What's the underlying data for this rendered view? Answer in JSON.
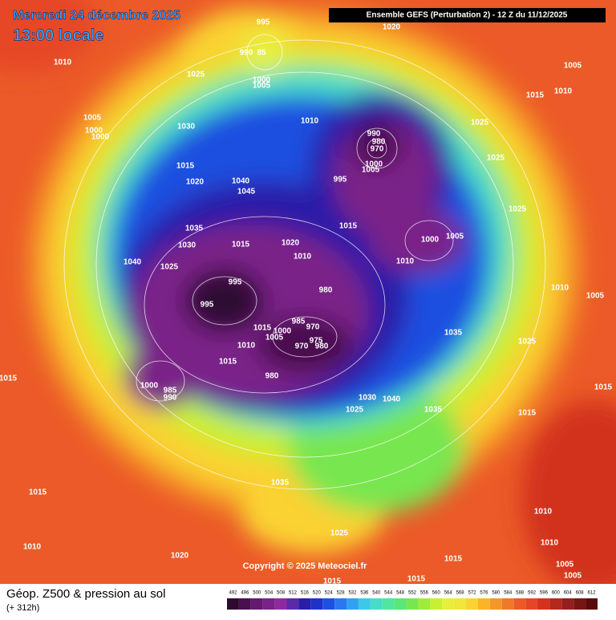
{
  "header": {
    "date": "Mercredi 24 décembre 2025",
    "time": "13:00 locale",
    "model": "Ensemble GEFS  (Perturbation 2)  -  12 Z du 11/12/2025"
  },
  "map": {
    "copyright": "Copyright © 2025 Meteociel.fr",
    "pressure_labels": [
      "995",
      "990",
      "85",
      "1020",
      "1010",
      "1005",
      "1025",
      "1000",
      "1005",
      "1015",
      "1010",
      "1005",
      "1000",
      "1000",
      "1030",
      "1010",
      "1025",
      "990",
      "980",
      "970",
      "1025",
      "1005",
      "1000",
      "1015",
      "995",
      "1040",
      "1020",
      "1045",
      "1025",
      "1015",
      "1035",
      "1005",
      "1000",
      "1030",
      "1015",
      "1020",
      "1010",
      "1010",
      "1040",
      "1025",
      "995",
      "1010",
      "980",
      "1005",
      "995",
      "985",
      "970",
      "1015",
      "1000",
      "1035",
      "1005",
      "975",
      "1025",
      "970",
      "980",
      "1010",
      "1015",
      "980",
      "1015",
      "1000",
      "985",
      "990",
      "1015",
      "1030",
      "1040",
      "1025",
      "1035",
      "1015",
      "1035",
      "1015",
      "1010",
      "1025",
      "1010",
      "1010",
      "1020",
      "1015",
      "1005",
      "1005",
      "1015",
      "1015"
    ]
  },
  "footer": {
    "title": "Géop. Z500 & pression au sol",
    "lead": "(+ 312h)",
    "legend": {
      "values": [
        492,
        496,
        500,
        504,
        508,
        512,
        516,
        520,
        524,
        528,
        532,
        536,
        540,
        544,
        548,
        552,
        556,
        560,
        564,
        568,
        572,
        576,
        580,
        584,
        588,
        592,
        596,
        600,
        604,
        608,
        612
      ],
      "colors": [
        "#2d0a30",
        "#4a0f4e",
        "#641a6e",
        "#7a2288",
        "#8e2aa0",
        "#5a2aa8",
        "#2a1ea8",
        "#1e32c8",
        "#1e50e0",
        "#2a78f0",
        "#32a0f0",
        "#3cc8e6",
        "#46dcc8",
        "#50e6a0",
        "#5ae678",
        "#78e650",
        "#a0eb3c",
        "#c8f032",
        "#e6f03c",
        "#f0e63c",
        "#fad232",
        "#fab428",
        "#f59628",
        "#f07828",
        "#eb5a28",
        "#e64628",
        "#d2321e",
        "#b4281e",
        "#961e1e",
        "#781414",
        "#5a0a0a"
      ]
    }
  }
}
